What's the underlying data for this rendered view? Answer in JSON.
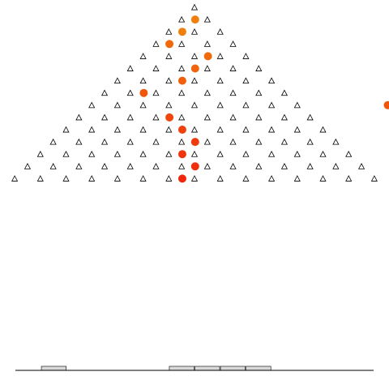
{
  "board": {
    "rows": 14,
    "peg_shape": "triangle-outline-icon",
    "bins": 14
  },
  "balls": [
    {
      "row": 1,
      "col": 1,
      "color": "#f07f0c"
    },
    {
      "row": 2,
      "col": 1,
      "color": "#f07f0c"
    },
    {
      "row": 3,
      "col": 1,
      "color": "#f06a0c"
    },
    {
      "row": 4,
      "col": 3,
      "color": "#f06a0c"
    },
    {
      "row": 5,
      "col": 3,
      "color": "#f0650c"
    },
    {
      "row": 6,
      "col": 3,
      "color": "#f0600c"
    },
    {
      "row": 7,
      "col": 2,
      "color": "#f0550c"
    },
    {
      "row": 8,
      "col": 12,
      "color": "#f0550c"
    },
    {
      "row": 9,
      "col": 4,
      "color": "#f0450c"
    },
    {
      "row": 10,
      "col": 5,
      "color": "#f0400c"
    },
    {
      "row": 11,
      "col": 6,
      "color": "#f03a0c"
    },
    {
      "row": 12,
      "col": 6,
      "color": "#f0350c"
    },
    {
      "row": 13,
      "col": 7,
      "color": "#f0300c"
    },
    {
      "row": 14,
      "col": 7,
      "color": "#f0250c"
    }
  ],
  "bin_counts": [
    0,
    1,
    0,
    0,
    0,
    0,
    1,
    1,
    1,
    1,
    0,
    0,
    0,
    0
  ],
  "colors": {
    "peg": "#000000",
    "bin_fill": "#d9d9d9",
    "bin_stroke": "#000000",
    "floor": "#000000"
  }
}
